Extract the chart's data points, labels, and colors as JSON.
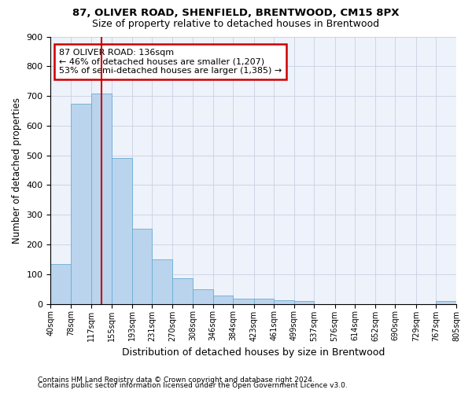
{
  "title1": "87, OLIVER ROAD, SHENFIELD, BRENTWOOD, CM15 8PX",
  "title2": "Size of property relative to detached houses in Brentwood",
  "xlabel": "Distribution of detached houses by size in Brentwood",
  "ylabel": "Number of detached properties",
  "footer1": "Contains HM Land Registry data © Crown copyright and database right 2024.",
  "footer2": "Contains public sector information licensed under the Open Government Licence v3.0.",
  "annotation_line1": "87 OLIVER ROAD: 136sqm",
  "annotation_line2": "← 46% of detached houses are smaller (1,207)",
  "annotation_line3": "53% of semi-detached houses are larger (1,385) →",
  "subject_sqm": 136,
  "bin_edges": [
    40,
    78,
    117,
    155,
    193,
    231,
    270,
    308,
    346,
    384,
    423,
    461,
    499,
    537,
    576,
    614,
    652,
    690,
    729,
    767,
    805
  ],
  "bar_heights": [
    135,
    675,
    707,
    492,
    253,
    150,
    87,
    49,
    28,
    18,
    17,
    11,
    9,
    0,
    0,
    0,
    0,
    0,
    0,
    10
  ],
  "bar_color": "#bad4ed",
  "bar_edge_color": "#6aacd4",
  "bar_edge_width": 0.6,
  "red_line_color": "#cc0000",
  "grid_color": "#c8d0e0",
  "annotation_box_color": "#cc0000",
  "bg_color": "#eef2fa",
  "ylim": [
    0,
    900
  ],
  "yticks": [
    0,
    100,
    200,
    300,
    400,
    500,
    600,
    700,
    800,
    900
  ],
  "xtick_labels": [
    "40sqm",
    "78sqm",
    "117sqm",
    "155sqm",
    "193sqm",
    "231sqm",
    "270sqm",
    "308sqm",
    "346sqm",
    "384sqm",
    "423sqm",
    "461sqm",
    "499sqm",
    "537sqm",
    "576sqm",
    "614sqm",
    "652sqm",
    "690sqm",
    "729sqm",
    "767sqm",
    "805sqm"
  ]
}
